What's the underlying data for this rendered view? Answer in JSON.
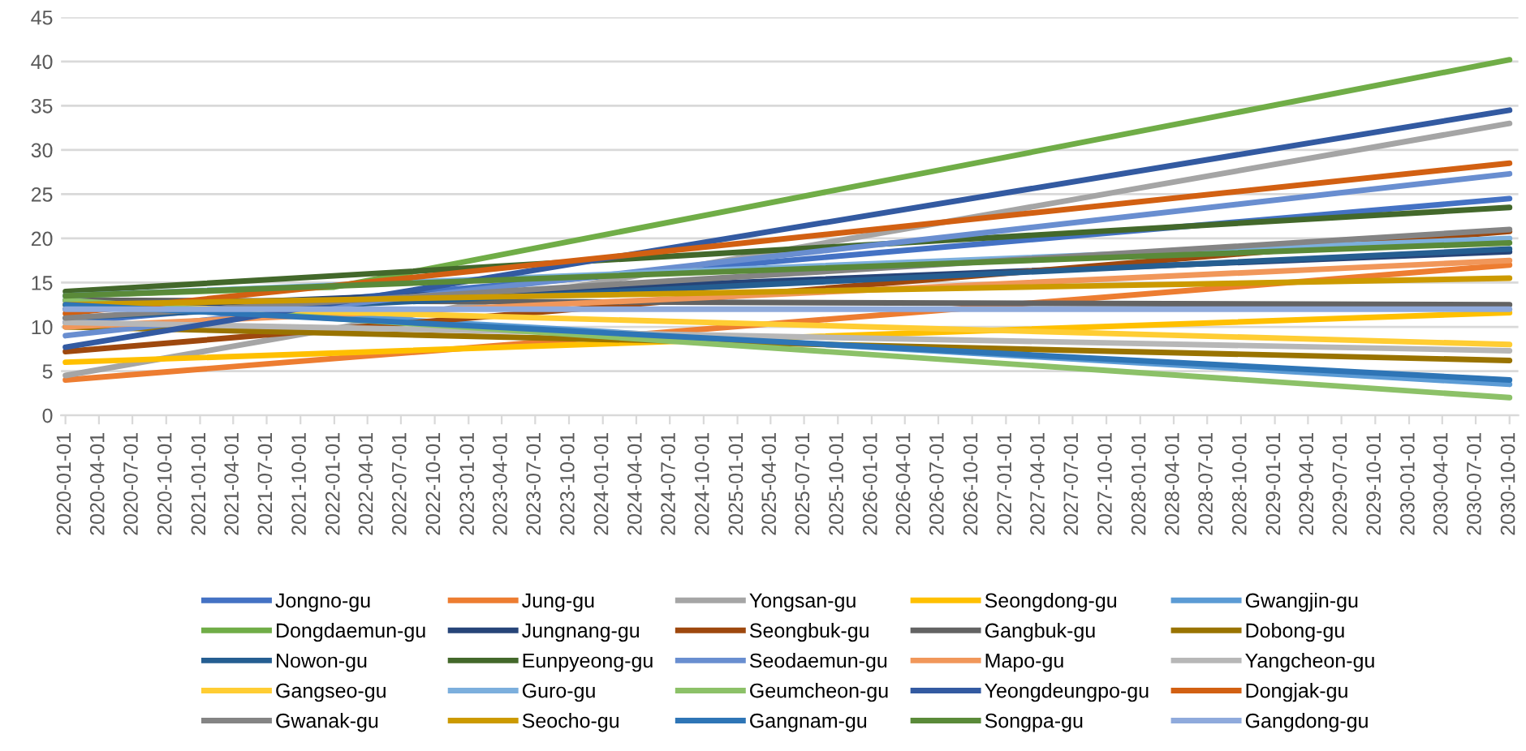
{
  "chart_data": {
    "type": "line",
    "xlim": [
      "2019-12-20",
      "2030-10-25"
    ],
    "ylim": [
      0,
      45
    ],
    "yticks": [
      0,
      5,
      10,
      15,
      20,
      25,
      30,
      35,
      40,
      45
    ],
    "xticks": [
      "2020-01-01",
      "2020-04-01",
      "2020-07-01",
      "2020-10-01",
      "2021-01-01",
      "2021-04-01",
      "2021-07-01",
      "2021-10-01",
      "2022-01-01",
      "2022-04-01",
      "2022-07-01",
      "2022-10-01",
      "2023-01-01",
      "2023-04-01",
      "2023-07-01",
      "2023-10-01",
      "2024-01-01",
      "2024-04-01",
      "2024-07-01",
      "2024-10-01",
      "2025-01-01",
      "2025-04-01",
      "2025-07-01",
      "2025-10-01",
      "2026-01-01",
      "2026-04-01",
      "2026-07-01",
      "2026-10-01",
      "2027-01-01",
      "2027-04-01",
      "2027-07-01",
      "2027-10-01",
      "2028-01-01",
      "2028-04-01",
      "2028-07-01",
      "2028-10-01",
      "2029-01-01",
      "2029-04-01",
      "2029-07-01",
      "2029-10-01",
      "2030-01-01",
      "2030-04-01",
      "2030-07-01",
      "2030-10-01"
    ],
    "grid": "y",
    "legend": "bottom",
    "marker": "none",
    "line_style": "solid",
    "series": [
      {
        "name": "Jongno-gu",
        "color": "#4472c4",
        "x": [
          "2020-01-01",
          "2030-10-01"
        ],
        "values": [
          10.5,
          24.5
        ]
      },
      {
        "name": "Jung-gu",
        "color": "#ed7d31",
        "x": [
          "2020-01-01",
          "2030-10-01"
        ],
        "values": [
          4,
          17
        ]
      },
      {
        "name": "Yongsan-gu",
        "color": "#a5a5a5",
        "x": [
          "2020-01-01",
          "2030-10-01"
        ],
        "values": [
          4.5,
          33
        ]
      },
      {
        "name": "Seongdong-gu",
        "color": "#ffc000",
        "x": [
          "2020-01-01",
          "2030-10-01"
        ],
        "values": [
          6,
          11.6
        ]
      },
      {
        "name": "Gwangjin-gu",
        "color": "#5b9bd5",
        "x": [
          "2020-01-01",
          "2030-10-01"
        ],
        "values": [
          13,
          3.5
        ]
      },
      {
        "name": "Dongdaemun-gu",
        "color": "#70ad47",
        "x": [
          "2020-01-01",
          "2022-01-01",
          "2030-10-01"
        ],
        "values": [
          13.5,
          14.5,
          40.2
        ]
      },
      {
        "name": "Jungnang-gu",
        "color": "#264478",
        "x": [
          "2020-01-01",
          "2030-10-01"
        ],
        "values": [
          12,
          18.5
        ]
      },
      {
        "name": "Seongbuk-gu",
        "color": "#9e480e",
        "x": [
          "2020-01-01",
          "2030-10-01"
        ],
        "values": [
          7.2,
          20.8
        ]
      },
      {
        "name": "Gangbuk-gu",
        "color": "#636363",
        "x": [
          "2020-01-01",
          "2030-10-01"
        ],
        "values": [
          13,
          12.5
        ]
      },
      {
        "name": "Dobong-gu",
        "color": "#997300",
        "x": [
          "2020-01-01",
          "2030-10-01"
        ],
        "values": [
          10,
          6.2
        ]
      },
      {
        "name": "Nowon-gu",
        "color": "#255e91",
        "x": [
          "2020-01-01",
          "2030-10-01"
        ],
        "values": [
          11,
          18.8
        ]
      },
      {
        "name": "Eunpyeong-gu",
        "color": "#43682b",
        "x": [
          "2020-01-01",
          "2030-10-01"
        ],
        "values": [
          14,
          23.5
        ]
      },
      {
        "name": "Seodaemun-gu",
        "color": "#698ed0",
        "x": [
          "2020-01-01",
          "2030-10-01"
        ],
        "values": [
          9,
          27.3
        ]
      },
      {
        "name": "Mapo-gu",
        "color": "#f1975a",
        "x": [
          "2020-01-01",
          "2030-10-01"
        ],
        "values": [
          10,
          17.5
        ]
      },
      {
        "name": "Yangcheon-gu",
        "color": "#b7b7b7",
        "x": [
          "2020-01-01",
          "2030-10-01"
        ],
        "values": [
          10.5,
          7.3
        ]
      },
      {
        "name": "Gangseo-gu",
        "color": "#ffcd33",
        "x": [
          "2020-01-01",
          "2030-10-01"
        ],
        "values": [
          12.5,
          8
        ]
      },
      {
        "name": "Guro-gu",
        "color": "#7cafdd",
        "x": [
          "2020-01-01",
          "2030-10-01"
        ],
        "values": [
          13.5,
          20
        ]
      },
      {
        "name": "Geumcheon-gu",
        "color": "#8cc168",
        "x": [
          "2020-01-01",
          "2030-10-01"
        ],
        "values": [
          13,
          2
        ]
      },
      {
        "name": "Yeongdeungpo-gu",
        "color": "#335aa1",
        "x": [
          "2020-01-01",
          "2030-10-01"
        ],
        "values": [
          7.7,
          34.5
        ]
      },
      {
        "name": "Dongjak-gu",
        "color": "#d26012",
        "x": [
          "2020-01-01",
          "2030-10-01"
        ],
        "values": [
          11.5,
          28.5
        ]
      },
      {
        "name": "Gwanak-gu",
        "color": "#848484",
        "x": [
          "2020-01-01",
          "2030-10-01"
        ],
        "values": [
          11,
          21
        ]
      },
      {
        "name": "Seocho-gu",
        "color": "#cc9a00",
        "x": [
          "2020-01-01",
          "2030-10-01"
        ],
        "values": [
          12.5,
          15.5
        ]
      },
      {
        "name": "Gangnam-gu",
        "color": "#2e75b6",
        "x": [
          "2020-01-01",
          "2030-10-01"
        ],
        "values": [
          12.5,
          4
        ]
      },
      {
        "name": "Songpa-gu",
        "color": "#5a8a39",
        "x": [
          "2020-01-01",
          "2030-10-01"
        ],
        "values": [
          13.5,
          19.5
        ]
      },
      {
        "name": "Gangdong-gu",
        "color": "#8faadc",
        "x": [
          "2020-01-01",
          "2030-10-01"
        ],
        "values": [
          12,
          12
        ]
      }
    ]
  }
}
